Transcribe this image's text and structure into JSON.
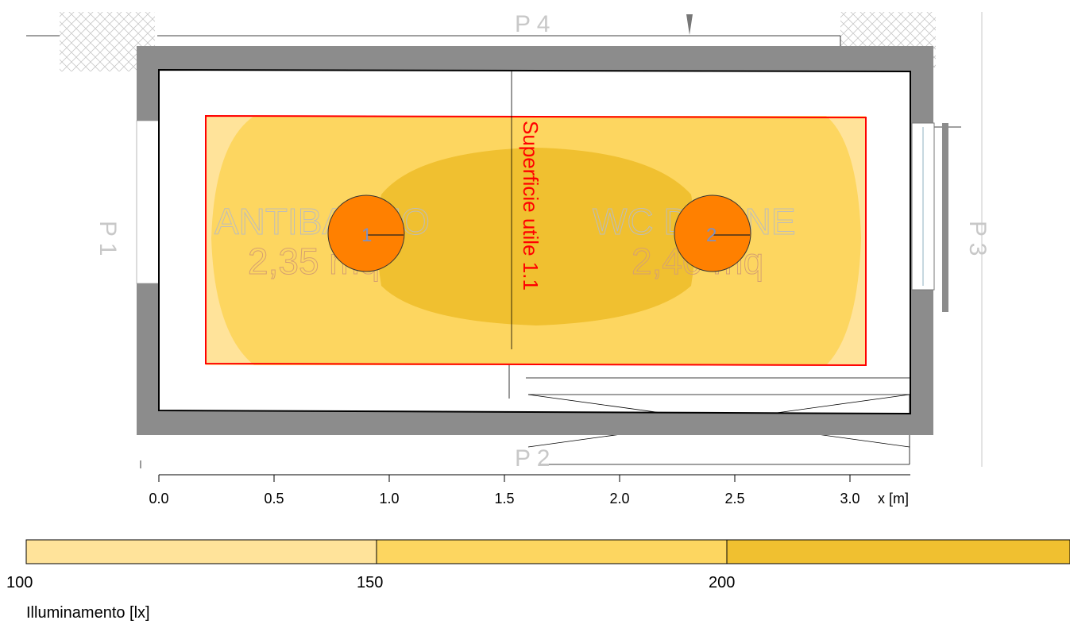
{
  "walls": {
    "top": "P 4",
    "bottom": "P 2",
    "left": "P 1",
    "right": "P 3"
  },
  "rooms": [
    {
      "name": "ANTIBAGNO",
      "area": "2,35 mq"
    },
    {
      "name": "WC DONNE",
      "area": "2,40 mq"
    }
  ],
  "luminaires": [
    {
      "id": "1"
    },
    {
      "id": "2"
    }
  ],
  "surface": {
    "label": "Superficie utile 1.1"
  },
  "x_axis": {
    "ticks": [
      "0.0",
      "0.5",
      "1.0",
      "1.5",
      "2.0",
      "2.5",
      "3.0"
    ],
    "unit_label": "x [m]"
  },
  "legend": {
    "title": "Illuminamento [lx]",
    "values": [
      "100",
      "150",
      "200"
    ],
    "bands": [
      {
        "from": 100,
        "to": 150,
        "color": "#ffe39a"
      },
      {
        "from": 150,
        "to": 200,
        "color": "#fdd660"
      },
      {
        "from": 200,
        "to": null,
        "color": "#f0c030"
      }
    ]
  },
  "colors": {
    "wall": "#8c8c8c",
    "surface_outline": "#ff0000",
    "luminaire": "#ff8000"
  }
}
